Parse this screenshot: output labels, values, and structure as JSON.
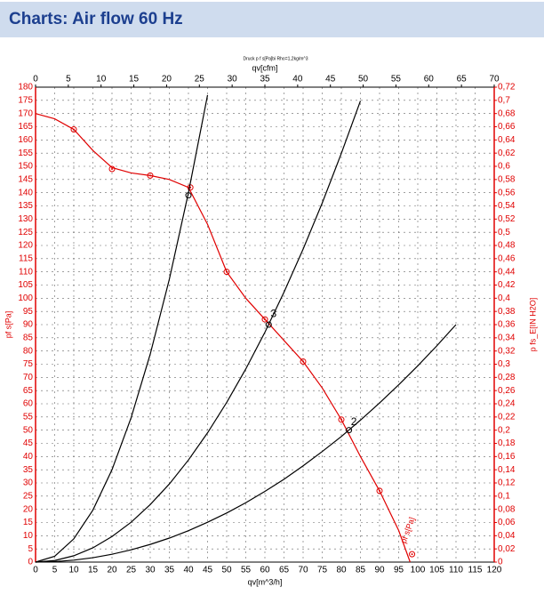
{
  "chart_data": {
    "type": "line",
    "title": "Charts: Air flow 60 Hz",
    "subtitle": "Druck p f s[Pa]bi Rho=1,2kg/m^3",
    "x_label": "qv[m^3/h]",
    "x2_label": "qv[cfm]",
    "y_label": "pf s[Pa]",
    "y2_label": "p fs_E[IN H2O]",
    "curve_label": "pf s[Pa]",
    "grid": true,
    "xlim": [
      0,
      120
    ],
    "xticks": [
      0,
      5,
      10,
      15,
      20,
      25,
      30,
      35,
      40,
      45,
      50,
      55,
      60,
      65,
      70,
      75,
      80,
      85,
      90,
      95,
      100,
      105,
      110,
      115,
      120
    ],
    "x2lim": [
      0,
      70
    ],
    "x2ticks": [
      0,
      5,
      10,
      15,
      20,
      25,
      30,
      35,
      40,
      45,
      50,
      55,
      60,
      65,
      70
    ],
    "ylim": [
      0,
      180
    ],
    "yticks": [
      0,
      5,
      10,
      15,
      20,
      25,
      30,
      35,
      40,
      45,
      50,
      55,
      60,
      65,
      70,
      75,
      80,
      85,
      90,
      95,
      100,
      105,
      110,
      115,
      120,
      125,
      130,
      135,
      140,
      145,
      150,
      155,
      160,
      165,
      170,
      175,
      180
    ],
    "y2lim": [
      0,
      0.72
    ],
    "y2ticks": [
      {
        "value": 0,
        "label": "0"
      },
      {
        "value": 0.02,
        "label": "0,02"
      },
      {
        "value": 0.04,
        "label": "0,04"
      },
      {
        "value": 0.06,
        "label": "0,06"
      },
      {
        "value": 0.08,
        "label": "0,08"
      },
      {
        "value": 0.1,
        "label": "0,1"
      },
      {
        "value": 0.12,
        "label": "0,12"
      },
      {
        "value": 0.14,
        "label": "0,14"
      },
      {
        "value": 0.16,
        "label": "0,16"
      },
      {
        "value": 0.18,
        "label": "0,18"
      },
      {
        "value": 0.2,
        "label": "0,2"
      },
      {
        "value": 0.22,
        "label": "0,22"
      },
      {
        "value": 0.24,
        "label": "0,24"
      },
      {
        "value": 0.26,
        "label": "0,26"
      },
      {
        "value": 0.28,
        "label": "0,28"
      },
      {
        "value": 0.3,
        "label": "0,3"
      },
      {
        "value": 0.32,
        "label": "0,32"
      },
      {
        "value": 0.34,
        "label": "0,34"
      },
      {
        "value": 0.36,
        "label": "0,36"
      },
      {
        "value": 0.38,
        "label": "0,38"
      },
      {
        "value": 0.4,
        "label": "0,4"
      },
      {
        "value": 0.42,
        "label": "0,42"
      },
      {
        "value": 0.44,
        "label": "0,44"
      },
      {
        "value": 0.46,
        "label": "0,46"
      },
      {
        "value": 0.48,
        "label": "0,48"
      },
      {
        "value": 0.5,
        "label": "0,5"
      },
      {
        "value": 0.52,
        "label": "0,52"
      },
      {
        "value": 0.54,
        "label": "0,54"
      },
      {
        "value": 0.56,
        "label": "0,56"
      },
      {
        "value": 0.58,
        "label": "0,58"
      },
      {
        "value": 0.6,
        "label": "0,6"
      },
      {
        "value": 0.62,
        "label": "0,62"
      },
      {
        "value": 0.64,
        "label": "0,64"
      },
      {
        "value": 0.66,
        "label": "0,66"
      },
      {
        "value": 0.68,
        "label": "0,68"
      },
      {
        "value": 0.7,
        "label": "0,7"
      },
      {
        "value": 0.72,
        "label": "0,72"
      }
    ],
    "series": [
      {
        "style": "line",
        "color": "#e00000",
        "x": [
          0,
          5,
          10,
          15,
          20,
          25,
          30,
          35,
          40,
          45,
          50,
          55,
          60,
          65,
          70,
          75,
          80,
          85,
          90,
          95,
          98
        ],
        "values": [
          170,
          168,
          164,
          156,
          149.5,
          147.5,
          146.5,
          145,
          142,
          128,
          110,
          100,
          92,
          84,
          76,
          66,
          54,
          40,
          27,
          12,
          0
        ]
      },
      {
        "style": "markers",
        "color": "#e00000",
        "x": [
          10,
          20,
          30,
          40.5,
          50,
          60,
          70,
          80,
          90,
          98.5
        ],
        "values": [
          164,
          149,
          146.5,
          142,
          110,
          92,
          76,
          54,
          27,
          3
        ]
      },
      {
        "style": "line",
        "color": "#000000",
        "x": [
          0,
          5,
          10,
          15,
          20,
          25,
          30,
          35,
          40,
          45
        ],
        "values": [
          0,
          2.2,
          8.8,
          19.7,
          35,
          54.7,
          78.8,
          107.2,
          140,
          177
        ]
      },
      {
        "style": "line",
        "color": "#000000",
        "x": [
          0,
          5,
          10,
          15,
          20,
          25,
          30,
          35,
          40,
          45,
          50,
          55,
          60,
          65,
          70,
          75,
          80,
          85
        ],
        "values": [
          0,
          0.6,
          2.4,
          5.4,
          9.7,
          15.1,
          21.8,
          29.6,
          38.7,
          49,
          60.5,
          73.2,
          87.1,
          102.3,
          118.6,
          136.1,
          154.9,
          174.8
        ]
      },
      {
        "style": "line",
        "color": "#000000",
        "x": [
          0,
          5,
          10,
          15,
          20,
          25,
          30,
          35,
          40,
          45,
          50,
          55,
          60,
          65,
          70,
          75,
          80,
          85,
          90,
          95,
          100,
          105,
          110
        ],
        "values": [
          0,
          0.19,
          0.74,
          1.67,
          2.98,
          4.65,
          6.7,
          9.1,
          11.9,
          15.1,
          18.6,
          22.5,
          26.8,
          31.4,
          36.5,
          41.9,
          47.6,
          53.8,
          60.3,
          67.2,
          74.4,
          82,
          90
        ]
      },
      {
        "style": "markers",
        "color": "#000000",
        "x": [
          40,
          61,
          82
        ],
        "values": [
          139,
          90,
          50
        ]
      }
    ],
    "annotations": [
      {
        "text": "3",
        "x": 61.5,
        "y": 94
      },
      {
        "text": "2",
        "x": 82.5,
        "y": 53
      }
    ]
  }
}
